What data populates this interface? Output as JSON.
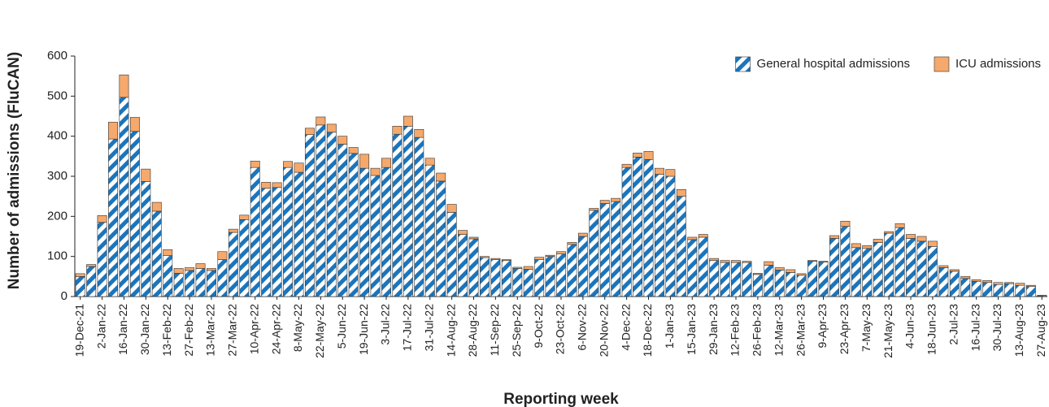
{
  "chart_data": {
    "type": "stacked_bar",
    "x_label": "Reporting week",
    "y_label": "Number of admissions (FluCAN)",
    "categories": [
      "19-Dec-21",
      null,
      "2-Jan-22",
      null,
      "16-Jan-22",
      null,
      "30-Jan-22",
      null,
      "13-Feb-22",
      null,
      "27-Feb-22",
      null,
      "13-Mar-22",
      null,
      "27-Mar-22",
      null,
      "10-Apr-22",
      null,
      "24-Apr-22",
      null,
      "8-May-22",
      null,
      "22-May-22",
      null,
      "5-Jun-22",
      null,
      "19-Jun-22",
      null,
      "3-Jul-22",
      null,
      "17-Jul-22",
      null,
      "31-Jul-22",
      null,
      "14-Aug-22",
      null,
      "28-Aug-22",
      null,
      "11-Sep-22",
      null,
      "25-Sep-22",
      null,
      "9-Oct-22",
      null,
      "23-Oct-22",
      null,
      "6-Nov-22",
      null,
      "20-Nov-22",
      null,
      "4-Dec-22",
      null,
      "18-Dec-22",
      null,
      "1-Jan-23",
      null,
      "15-Jan-23",
      null,
      "29-Jan-23",
      null,
      "12-Feb-23",
      null,
      "26-Feb-23",
      null,
      "12-Mar-23",
      null,
      "26-Mar-23",
      null,
      "9-Apr-23",
      null,
      "23-Apr-23",
      null,
      "7-May-23",
      null,
      "21-May-23",
      null,
      "4-Jun-23",
      null,
      "18-Jun-23",
      null,
      "2-Jul-23",
      null,
      "16-Jul-23",
      null,
      "30-Jul-23",
      null,
      "13-Aug-23",
      null,
      "27-Aug-23"
    ],
    "series": [
      {
        "name": "General hospital admissions",
        "color": "#1b75bc",
        "pattern": "hatch",
        "values": [
          50,
          75,
          185,
          393,
          497,
          412,
          287,
          213,
          102,
          58,
          65,
          70,
          65,
          92,
          160,
          192,
          322,
          270,
          272,
          322,
          310,
          404,
          428,
          410,
          380,
          357,
          320,
          302,
          322,
          405,
          425,
          397,
          328,
          288,
          210,
          155,
          144,
          97,
          92,
          90,
          70,
          68,
          92,
          100,
          106,
          130,
          150,
          215,
          232,
          237,
          322,
          348,
          342,
          305,
          300,
          250,
          142,
          148,
          90,
          85,
          85,
          85,
          55,
          78,
          66,
          60,
          53,
          88,
          86,
          145,
          175,
          122,
          120,
          135,
          158,
          172,
          145,
          138,
          125,
          72,
          63,
          45,
          38,
          35,
          30,
          32,
          28,
          25,
          2
        ]
      },
      {
        "name": "ICU admissions",
        "color": "#f5a96c",
        "values": [
          7,
          5,
          17,
          42,
          56,
          35,
          31,
          22,
          15,
          12,
          7,
          12,
          5,
          20,
          8,
          11,
          16,
          15,
          12,
          15,
          23,
          16,
          20,
          20,
          20,
          15,
          35,
          18,
          23,
          20,
          25,
          20,
          17,
          20,
          20,
          10,
          4,
          3,
          3,
          2,
          3,
          7,
          6,
          3,
          6,
          5,
          8,
          5,
          8,
          8,
          8,
          10,
          20,
          15,
          17,
          17,
          6,
          7,
          5,
          5,
          5,
          3,
          3,
          9,
          6,
          7,
          4,
          2,
          2,
          7,
          13,
          10,
          7,
          8,
          4,
          10,
          10,
          12,
          13,
          5,
          4,
          5,
          4,
          5,
          5,
          3,
          5,
          3,
          1
        ]
      }
    ],
    "ylim": [
      0,
      600
    ],
    "yticks": [
      0,
      100,
      200,
      300,
      400,
      500,
      600
    ],
    "legend": "top-right"
  }
}
